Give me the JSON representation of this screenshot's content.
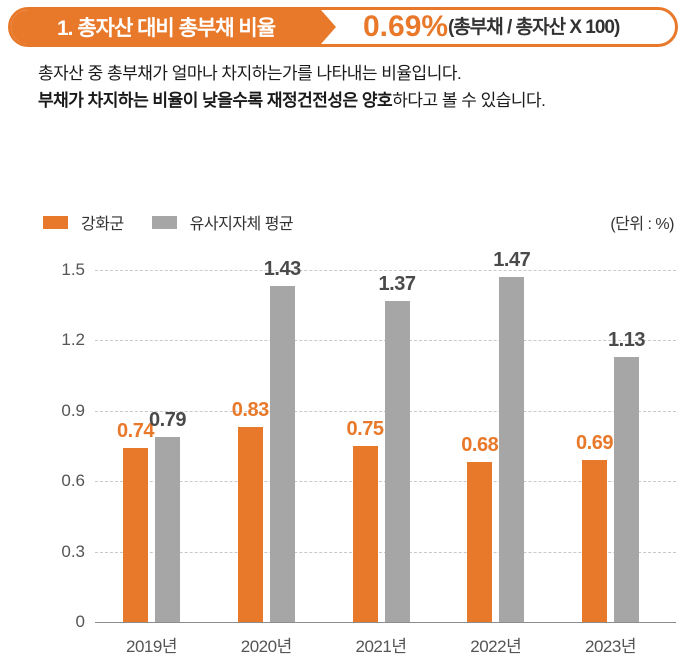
{
  "header": {
    "title": "1. 총자산 대비 총부채 비율",
    "value": "0.69%",
    "formula": "(총부채 / 총자산 X 100)",
    "accent_color": "#E8792B"
  },
  "description": {
    "line1": "총자산 중 총부채가 얼마나 차지하는가를 나타내는 비율입니다.",
    "line2_bold": "부채가 차지하는 비율이 낮을수록 재정건전성은 양호",
    "line2_rest": "하다고 볼 수 있습니다."
  },
  "legend": {
    "unit_label": "(단위 : %)"
  },
  "chart_data": {
    "type": "bar",
    "title": "총자산 대비 총부채 비율",
    "categories": [
      "2019년",
      "2020년",
      "2021년",
      "2022년",
      "2023년"
    ],
    "series": [
      {
        "name": "강화군",
        "color": "#E8792B",
        "label_color": "#E8792B",
        "values": [
          0.74,
          0.83,
          0.75,
          0.68,
          0.69
        ]
      },
      {
        "name": "유사지자체 평균",
        "color": "#A6A6A6",
        "label_color": "#4A4A4A",
        "values": [
          0.79,
          1.43,
          1.37,
          1.47,
          1.13
        ]
      }
    ],
    "xlabel": "",
    "ylabel": "",
    "unit": "%",
    "ylim": [
      0,
      1.5
    ],
    "yticks": [
      0,
      0.3,
      0.6,
      0.9,
      1.2,
      1.5
    ],
    "grid": "dashed-horizontal",
    "legend_position": "top-left",
    "value_labels": true
  }
}
